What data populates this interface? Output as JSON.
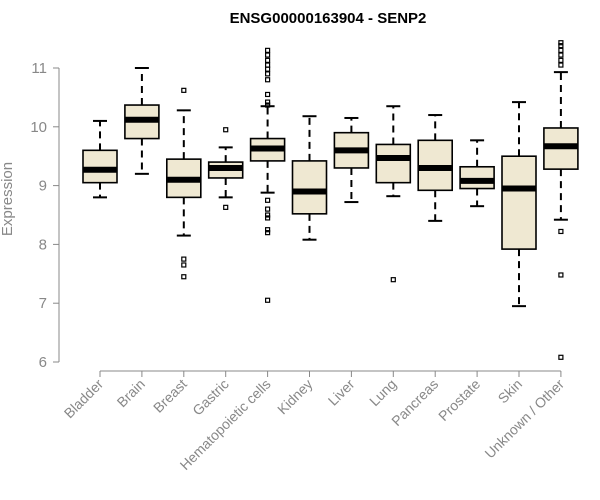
{
  "chart_data": {
    "type": "boxplot",
    "title": "ENSG00000163904 - SENP2",
    "xlabel": "",
    "ylabel": "Expression",
    "ylim": [
      6,
      11.5
    ],
    "yticks": [
      6,
      7,
      8,
      9,
      10,
      11
    ],
    "grid": false,
    "legend": "none",
    "box_color": "#efe8d2",
    "categories": [
      "Bladder",
      "Brain",
      "Breast",
      "Gastric",
      "Hematopoietic cells",
      "Kidney",
      "Liver",
      "Lung",
      "Pancreas",
      "Prostate",
      "Skin",
      "Unknown / Other"
    ],
    "boxes": [
      {
        "category": "Bladder",
        "whisker_low": 8.8,
        "q1": 9.05,
        "median": 9.27,
        "q3": 9.6,
        "whisker_high": 10.1,
        "outliers": []
      },
      {
        "category": "Brain",
        "whisker_low": 9.2,
        "q1": 9.8,
        "median": 10.12,
        "q3": 10.37,
        "whisker_high": 11.0,
        "outliers": []
      },
      {
        "category": "Breast",
        "whisker_low": 8.15,
        "q1": 8.8,
        "median": 9.1,
        "q3": 9.45,
        "whisker_high": 10.28,
        "outliers": [
          10.62,
          7.75,
          7.65,
          7.45
        ]
      },
      {
        "category": "Gastric",
        "whisker_low": 8.8,
        "q1": 9.13,
        "median": 9.3,
        "q3": 9.4,
        "whisker_high": 9.65,
        "outliers": [
          9.95,
          8.63
        ]
      },
      {
        "category": "Hematopoietic cells",
        "whisker_low": 8.88,
        "q1": 9.42,
        "median": 9.63,
        "q3": 9.8,
        "whisker_high": 10.35,
        "outliers": [
          11.3,
          11.22,
          11.13,
          11.05,
          10.98,
          10.9,
          10.8,
          10.55,
          10.42,
          10.37,
          8.75,
          8.6,
          8.5,
          8.45,
          8.25,
          8.2,
          7.05
        ]
      },
      {
        "category": "Kidney",
        "whisker_low": 8.08,
        "q1": 8.52,
        "median": 8.9,
        "q3": 9.42,
        "whisker_high": 10.18,
        "outliers": []
      },
      {
        "category": "Liver",
        "whisker_low": 8.72,
        "q1": 9.3,
        "median": 9.6,
        "q3": 9.9,
        "whisker_high": 10.15,
        "outliers": []
      },
      {
        "category": "Lung",
        "whisker_low": 8.82,
        "q1": 9.05,
        "median": 9.47,
        "q3": 9.7,
        "whisker_high": 10.35,
        "outliers": [
          7.4
        ]
      },
      {
        "category": "Pancreas",
        "whisker_low": 8.4,
        "q1": 8.92,
        "median": 9.3,
        "q3": 9.77,
        "whisker_high": 10.2,
        "outliers": []
      },
      {
        "category": "Prostate",
        "whisker_low": 8.65,
        "q1": 8.95,
        "median": 9.08,
        "q3": 9.32,
        "whisker_high": 9.77,
        "outliers": []
      },
      {
        "category": "Skin",
        "whisker_low": 6.95,
        "q1": 7.92,
        "median": 8.95,
        "q3": 9.5,
        "whisker_high": 10.42,
        "outliers": []
      },
      {
        "category": "Unknown / Other",
        "whisker_low": 8.42,
        "q1": 9.28,
        "median": 9.67,
        "q3": 9.98,
        "whisker_high": 10.93,
        "outliers": [
          11.43,
          11.38,
          11.3,
          11.22,
          11.13,
          11.05,
          8.22,
          7.48,
          6.08
        ]
      }
    ]
  }
}
